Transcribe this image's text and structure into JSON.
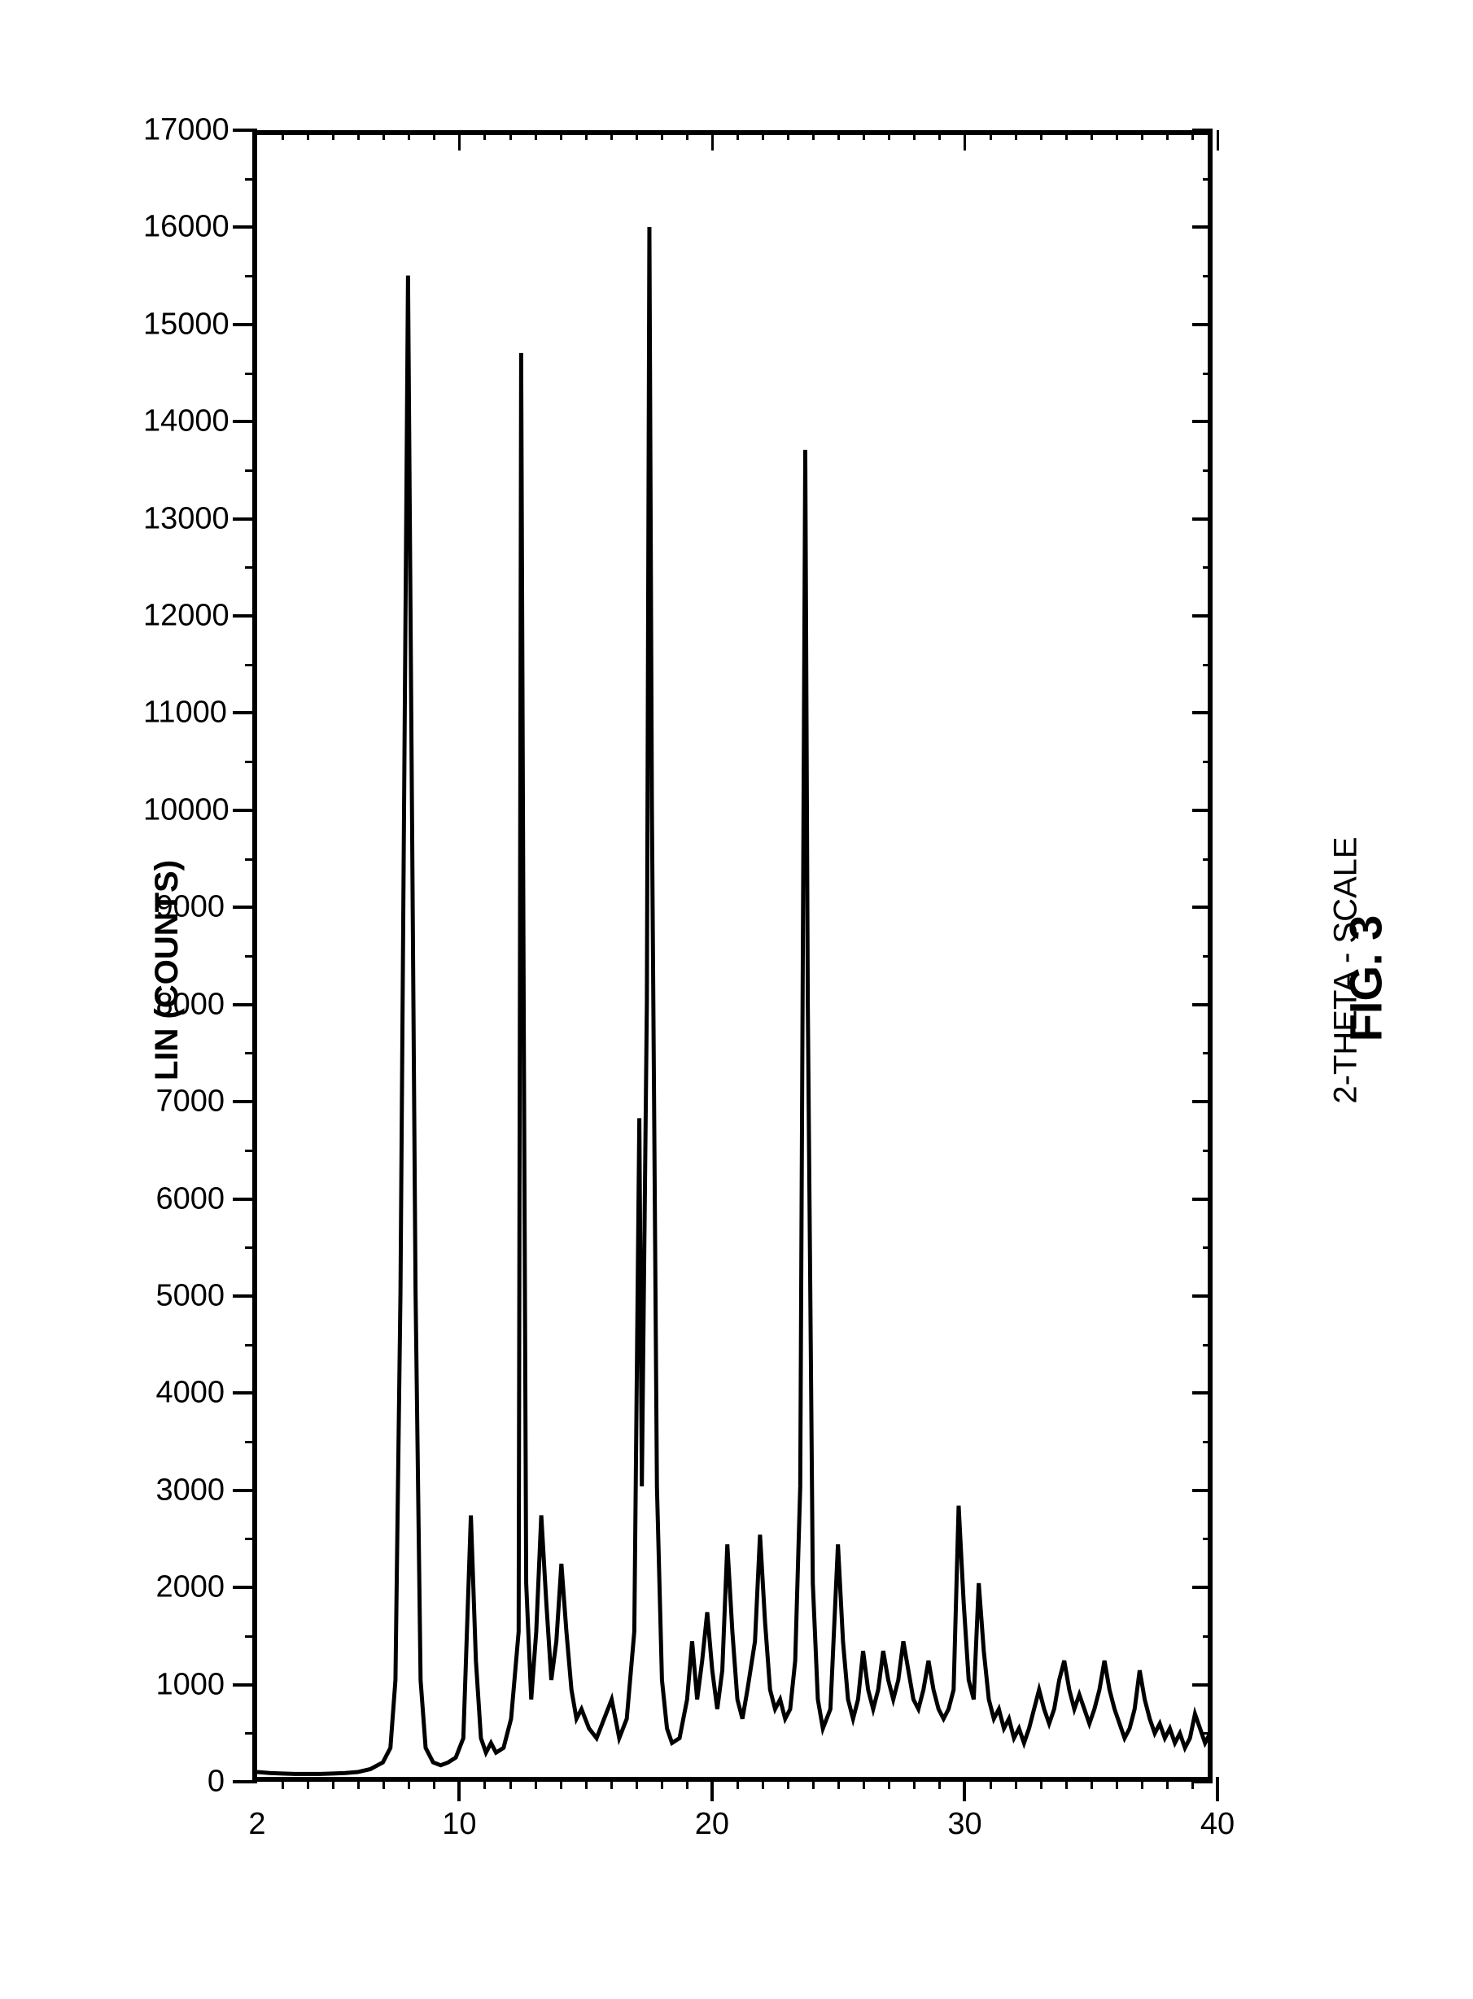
{
  "chart": {
    "type": "line",
    "figure_caption": "FIG. 3",
    "x_axis": {
      "label": "LIN (COUNTS)",
      "min": 0,
      "max": 17000,
      "major_ticks": [
        0,
        1000,
        2000,
        3000,
        4000,
        5000,
        6000,
        7000,
        8000,
        9000,
        10000,
        11000,
        12000,
        13000,
        14000,
        15000,
        16000,
        17000
      ],
      "label_fontsize": 38
    },
    "y_axis": {
      "label": "2-THETA - SCALE",
      "min": 2,
      "max": 40,
      "major_ticks": [
        10,
        20,
        30,
        40
      ],
      "start_label": "2",
      "label_fontsize": 38
    },
    "line_color": "#000000",
    "line_width": 5,
    "background_color": "#ffffff",
    "border_color": "#000000",
    "border_width": 6,
    "spectrum": [
      [
        2.0,
        50
      ],
      [
        2.5,
        40
      ],
      [
        3.0,
        35
      ],
      [
        3.5,
        30
      ],
      [
        4.0,
        30
      ],
      [
        4.5,
        30
      ],
      [
        5.0,
        35
      ],
      [
        5.5,
        40
      ],
      [
        6.0,
        50
      ],
      [
        6.5,
        80
      ],
      [
        7.0,
        150
      ],
      [
        7.3,
        300
      ],
      [
        7.5,
        1000
      ],
      [
        7.7,
        5000
      ],
      [
        7.9,
        12000
      ],
      [
        8.0,
        15500
      ],
      [
        8.1,
        12000
      ],
      [
        8.3,
        5000
      ],
      [
        8.5,
        1000
      ],
      [
        8.7,
        300
      ],
      [
        9.0,
        150
      ],
      [
        9.3,
        120
      ],
      [
        9.6,
        150
      ],
      [
        9.9,
        200
      ],
      [
        10.2,
        400
      ],
      [
        10.5,
        2700
      ],
      [
        10.7,
        1200
      ],
      [
        10.9,
        400
      ],
      [
        11.1,
        250
      ],
      [
        11.3,
        350
      ],
      [
        11.5,
        250
      ],
      [
        11.8,
        300
      ],
      [
        12.1,
        600
      ],
      [
        12.4,
        1500
      ],
      [
        12.5,
        14700
      ],
      [
        12.6,
        8000
      ],
      [
        12.7,
        2000
      ],
      [
        12.9,
        800
      ],
      [
        13.1,
        1500
      ],
      [
        13.3,
        2700
      ],
      [
        13.5,
        1800
      ],
      [
        13.7,
        1000
      ],
      [
        13.9,
        1400
      ],
      [
        14.1,
        2200
      ],
      [
        14.3,
        1500
      ],
      [
        14.5,
        900
      ],
      [
        14.7,
        600
      ],
      [
        14.9,
        700
      ],
      [
        15.2,
        500
      ],
      [
        15.5,
        400
      ],
      [
        15.8,
        600
      ],
      [
        16.1,
        800
      ],
      [
        16.4,
        400
      ],
      [
        16.7,
        600
      ],
      [
        17.0,
        1500
      ],
      [
        17.2,
        6800
      ],
      [
        17.3,
        3000
      ],
      [
        17.5,
        8000
      ],
      [
        17.6,
        16000
      ],
      [
        17.7,
        10000
      ],
      [
        17.9,
        3000
      ],
      [
        18.1,
        1000
      ],
      [
        18.3,
        500
      ],
      [
        18.5,
        350
      ],
      [
        18.8,
        400
      ],
      [
        19.1,
        800
      ],
      [
        19.3,
        1400
      ],
      [
        19.5,
        800
      ],
      [
        19.7,
        1200
      ],
      [
        19.9,
        1700
      ],
      [
        20.1,
        1100
      ],
      [
        20.3,
        700
      ],
      [
        20.5,
        1100
      ],
      [
        20.7,
        2400
      ],
      [
        20.9,
        1500
      ],
      [
        21.1,
        800
      ],
      [
        21.3,
        600
      ],
      [
        21.5,
        900
      ],
      [
        21.8,
        1400
      ],
      [
        22.0,
        2500
      ],
      [
        22.2,
        1600
      ],
      [
        22.4,
        900
      ],
      [
        22.6,
        700
      ],
      [
        22.8,
        800
      ],
      [
        23.0,
        600
      ],
      [
        23.2,
        700
      ],
      [
        23.4,
        1200
      ],
      [
        23.6,
        3000
      ],
      [
        23.8,
        13700
      ],
      [
        23.9,
        8000
      ],
      [
        24.1,
        2000
      ],
      [
        24.3,
        800
      ],
      [
        24.5,
        500
      ],
      [
        24.8,
        700
      ],
      [
        25.1,
        2400
      ],
      [
        25.3,
        1400
      ],
      [
        25.5,
        800
      ],
      [
        25.7,
        600
      ],
      [
        25.9,
        800
      ],
      [
        26.1,
        1300
      ],
      [
        26.3,
        900
      ],
      [
        26.5,
        700
      ],
      [
        26.7,
        900
      ],
      [
        26.9,
        1300
      ],
      [
        27.1,
        1000
      ],
      [
        27.3,
        800
      ],
      [
        27.5,
        1000
      ],
      [
        27.7,
        1400
      ],
      [
        27.9,
        1100
      ],
      [
        28.1,
        800
      ],
      [
        28.3,
        700
      ],
      [
        28.5,
        900
      ],
      [
        28.7,
        1200
      ],
      [
        28.9,
        900
      ],
      [
        29.1,
        700
      ],
      [
        29.3,
        600
      ],
      [
        29.5,
        700
      ],
      [
        29.7,
        900
      ],
      [
        29.9,
        2800
      ],
      [
        30.1,
        1800
      ],
      [
        30.3,
        1000
      ],
      [
        30.5,
        800
      ],
      [
        30.7,
        2000
      ],
      [
        30.9,
        1300
      ],
      [
        31.1,
        800
      ],
      [
        31.3,
        600
      ],
      [
        31.5,
        700
      ],
      [
        31.7,
        500
      ],
      [
        31.9,
        600
      ],
      [
        32.1,
        400
      ],
      [
        32.3,
        500
      ],
      [
        32.5,
        350
      ],
      [
        32.7,
        500
      ],
      [
        32.9,
        700
      ],
      [
        33.1,
        900
      ],
      [
        33.3,
        700
      ],
      [
        33.5,
        550
      ],
      [
        33.7,
        700
      ],
      [
        33.9,
        1000
      ],
      [
        34.1,
        1200
      ],
      [
        34.3,
        900
      ],
      [
        34.5,
        700
      ],
      [
        34.7,
        850
      ],
      [
        34.9,
        700
      ],
      [
        35.1,
        550
      ],
      [
        35.3,
        700
      ],
      [
        35.5,
        900
      ],
      [
        35.7,
        1200
      ],
      [
        35.9,
        900
      ],
      [
        36.1,
        700
      ],
      [
        36.3,
        550
      ],
      [
        36.5,
        400
      ],
      [
        36.7,
        500
      ],
      [
        36.9,
        700
      ],
      [
        37.1,
        1100
      ],
      [
        37.3,
        800
      ],
      [
        37.5,
        600
      ],
      [
        37.7,
        450
      ],
      [
        37.9,
        550
      ],
      [
        38.1,
        400
      ],
      [
        38.3,
        500
      ],
      [
        38.5,
        350
      ],
      [
        38.7,
        450
      ],
      [
        38.9,
        300
      ],
      [
        39.1,
        400
      ],
      [
        39.3,
        650
      ],
      [
        39.5,
        500
      ],
      [
        39.7,
        350
      ],
      [
        39.9,
        450
      ],
      [
        40.0,
        400
      ]
    ]
  }
}
